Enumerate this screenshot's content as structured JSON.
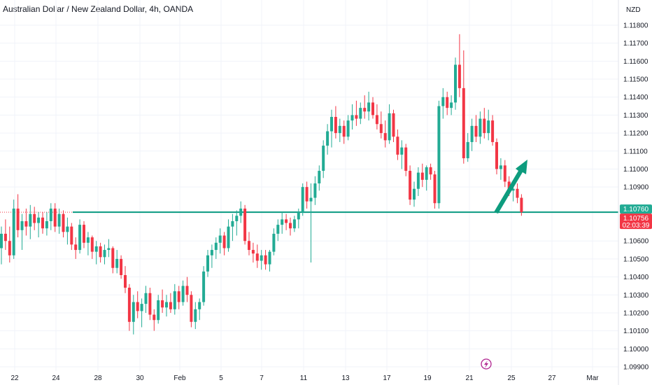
{
  "header": {
    "title": "Australian Dollar / New Zealand Dollar, 4h, OANDA",
    "currency": "NZD"
  },
  "colors": {
    "up": "#22ab94",
    "down": "#f23645",
    "level": "#089981",
    "arrow": "#0d9c7e",
    "last_price_badge": "#f23645",
    "level_badge": "#22ab94",
    "grid": "#f0f3fa",
    "text": "#131722",
    "bolt": "#b0238f"
  },
  "price_scale": {
    "ticks": [
      "1.11800",
      "1.11700",
      "1.11600",
      "1.11500",
      "1.11400",
      "1.11300",
      "1.11200",
      "1.11100",
      "1.11000",
      "1.10900",
      "1.10600",
      "1.10500",
      "1.10400",
      "1.10300",
      "1.10200",
      "1.10100",
      "1.10000",
      "1.09900"
    ],
    "level_badge": "1.10760",
    "last_price_badge": "1.10756",
    "countdown": "02:03:39"
  },
  "time_scale": {
    "labels": [
      "22",
      "24",
      "28",
      "30",
      "Feb",
      "5",
      "7",
      "11",
      "13",
      "17",
      "19",
      "21",
      "25",
      "27",
      "Mar"
    ]
  },
  "chart_data": {
    "type": "candlestick",
    "title": "Australian Dollar / New Zealand Dollar, 4h, OANDA",
    "y_unit": "NZD",
    "ylim": [
      1.0988,
      1.1188
    ],
    "x_range": [
      "Jan 22",
      "Mar 2"
    ],
    "horizontal_level": 1.1076,
    "last_price": 1.10756,
    "annotation": "upward arrow projecting price rise from the 1.10760 level",
    "ohlc": [
      [
        1.1056,
        1.1068,
        1.1047,
        1.1064
      ],
      [
        1.1064,
        1.1072,
        1.1055,
        1.106
      ],
      [
        1.106,
        1.1068,
        1.1048,
        1.1052
      ],
      [
        1.1052,
        1.1083,
        1.105,
        1.1078
      ],
      [
        1.1078,
        1.1086,
        1.1062,
        1.1066
      ],
      [
        1.1066,
        1.1075,
        1.1055,
        1.1071
      ],
      [
        1.1071,
        1.1078,
        1.1063,
        1.1068
      ],
      [
        1.1068,
        1.108,
        1.1061,
        1.1075
      ],
      [
        1.1075,
        1.1079,
        1.1066,
        1.107
      ],
      [
        1.107,
        1.1076,
        1.1062,
        1.1073
      ],
      [
        1.1073,
        1.1076,
        1.1064,
        1.1067
      ],
      [
        1.1067,
        1.1076,
        1.1063,
        1.1071
      ],
      [
        1.1071,
        1.1081,
        1.1066,
        1.1078
      ],
      [
        1.1078,
        1.1081,
        1.1065,
        1.1068
      ],
      [
        1.1068,
        1.1078,
        1.1064,
        1.1075
      ],
      [
        1.1075,
        1.1077,
        1.1062,
        1.1065
      ],
      [
        1.1065,
        1.1073,
        1.1058,
        1.1068
      ],
      [
        1.1068,
        1.107,
        1.1055,
        1.1058
      ],
      [
        1.1058,
        1.1062,
        1.105,
        1.1055
      ],
      [
        1.1055,
        1.1072,
        1.1053,
        1.1069
      ],
      [
        1.1069,
        1.1071,
        1.1056,
        1.1059
      ],
      [
        1.1059,
        1.1065,
        1.1052,
        1.1062
      ],
      [
        1.1062,
        1.1063,
        1.105,
        1.1054
      ],
      [
        1.1054,
        1.106,
        1.1047,
        1.1057
      ],
      [
        1.1057,
        1.1059,
        1.1048,
        1.1051
      ],
      [
        1.1051,
        1.1058,
        1.1047,
        1.1055
      ],
      [
        1.1055,
        1.1061,
        1.1051,
        1.1056
      ],
      [
        1.1056,
        1.1057,
        1.1042,
        1.1045
      ],
      [
        1.1045,
        1.1055,
        1.1042,
        1.105
      ],
      [
        1.105,
        1.1052,
        1.1039,
        1.1041
      ],
      [
        1.1041,
        1.1046,
        1.1031,
        1.1034
      ],
      [
        1.1034,
        1.1036,
        1.101,
        1.1015
      ],
      [
        1.1015,
        1.103,
        1.1008,
        1.1026
      ],
      [
        1.1026,
        1.1032,
        1.1017,
        1.1021
      ],
      [
        1.1021,
        1.1028,
        1.1012,
        1.1025
      ],
      [
        1.1025,
        1.1035,
        1.102,
        1.1031
      ],
      [
        1.1031,
        1.1034,
        1.1016,
        1.1019
      ],
      [
        1.1019,
        1.1022,
        1.101,
        1.1016
      ],
      [
        1.1016,
        1.103,
        1.1014,
        1.1027
      ],
      [
        1.1027,
        1.1033,
        1.102,
        1.1023
      ],
      [
        1.1023,
        1.103,
        1.1018,
        1.1026
      ],
      [
        1.1026,
        1.1031,
        1.102,
        1.1022
      ],
      [
        1.1022,
        1.1036,
        1.1019,
        1.1032
      ],
      [
        1.1032,
        1.1035,
        1.1022,
        1.1026
      ],
      [
        1.1026,
        1.1038,
        1.1024,
        1.1035
      ],
      [
        1.1035,
        1.104,
        1.1026,
        1.103
      ],
      [
        1.103,
        1.1032,
        1.1012,
        1.1015
      ],
      [
        1.1015,
        1.1026,
        1.1011,
        1.1022
      ],
      [
        1.1022,
        1.1028,
        1.1016,
        1.1026
      ],
      [
        1.1026,
        1.1046,
        1.1024,
        1.1043
      ],
      [
        1.1043,
        1.1055,
        1.104,
        1.1052
      ],
      [
        1.1052,
        1.1058,
        1.1045,
        1.1055
      ],
      [
        1.1055,
        1.1062,
        1.105,
        1.1059
      ],
      [
        1.1059,
        1.1067,
        1.1053,
        1.1063
      ],
      [
        1.1063,
        1.1065,
        1.1052,
        1.1056
      ],
      [
        1.1056,
        1.1072,
        1.1054,
        1.1068
      ],
      [
        1.1068,
        1.1075,
        1.106,
        1.1071
      ],
      [
        1.1071,
        1.1077,
        1.1063,
        1.1074
      ],
      [
        1.1074,
        1.1082,
        1.107,
        1.1078
      ],
      [
        1.1078,
        1.108,
        1.1058,
        1.106
      ],
      [
        1.106,
        1.1065,
        1.1052,
        1.1055
      ],
      [
        1.1055,
        1.1059,
        1.1048,
        1.1053
      ],
      [
        1.1053,
        1.1058,
        1.1045,
        1.1049
      ],
      [
        1.1049,
        1.1055,
        1.1044,
        1.1052
      ],
      [
        1.1052,
        1.1055,
        1.1044,
        1.1047
      ],
      [
        1.1047,
        1.1055,
        1.1043,
        1.1054
      ],
      [
        1.1054,
        1.1067,
        1.1052,
        1.1064
      ],
      [
        1.1064,
        1.1072,
        1.106,
        1.1069
      ],
      [
        1.1069,
        1.1076,
        1.1064,
        1.1072
      ],
      [
        1.1072,
        1.1075,
        1.1066,
        1.107
      ],
      [
        1.107,
        1.1073,
        1.1063,
        1.1067
      ],
      [
        1.1067,
        1.1074,
        1.1065,
        1.1072
      ],
      [
        1.1072,
        1.1078,
        1.1067,
        1.1076
      ],
      [
        1.1076,
        1.1092,
        1.1074,
        1.109
      ],
      [
        1.109,
        1.1093,
        1.1078,
        1.1082
      ],
      [
        1.1082,
        1.1092,
        1.1048,
        1.1084
      ],
      [
        1.1084,
        1.1096,
        1.108,
        1.1092
      ],
      [
        1.1092,
        1.1102,
        1.1088,
        1.1099
      ],
      [
        1.1099,
        1.1116,
        1.1095,
        1.1113
      ],
      [
        1.1113,
        1.1125,
        1.1108,
        1.1121
      ],
      [
        1.1121,
        1.1133,
        1.1112,
        1.1129
      ],
      [
        1.1129,
        1.1135,
        1.1117,
        1.112
      ],
      [
        1.112,
        1.1128,
        1.1115,
        1.1124
      ],
      [
        1.1124,
        1.1127,
        1.1114,
        1.1118
      ],
      [
        1.1118,
        1.113,
        1.1116,
        1.1127
      ],
      [
        1.1127,
        1.1136,
        1.1122,
        1.113
      ],
      [
        1.113,
        1.1138,
        1.1124,
        1.1128
      ],
      [
        1.1128,
        1.1137,
        1.1125,
        1.1134
      ],
      [
        1.1134,
        1.1141,
        1.1128,
        1.1132
      ],
      [
        1.1132,
        1.1143,
        1.1127,
        1.1137
      ],
      [
        1.1137,
        1.114,
        1.1128,
        1.113
      ],
      [
        1.113,
        1.1136,
        1.1122,
        1.1125
      ],
      [
        1.1125,
        1.1132,
        1.1117,
        1.112
      ],
      [
        1.112,
        1.1127,
        1.1112,
        1.1116
      ],
      [
        1.1116,
        1.1136,
        1.1114,
        1.1131
      ],
      [
        1.1131,
        1.1133,
        1.1115,
        1.1118
      ],
      [
        1.1118,
        1.1122,
        1.1105,
        1.1108
      ],
      [
        1.1108,
        1.1116,
        1.11,
        1.1112
      ],
      [
        1.1112,
        1.1114,
        1.1096,
        1.1099
      ],
      [
        1.1099,
        1.1102,
        1.108,
        1.1083
      ],
      [
        1.1083,
        1.1093,
        1.1079,
        1.1089
      ],
      [
        1.1089,
        1.1101,
        1.1085,
        1.1098
      ],
      [
        1.1098,
        1.1103,
        1.109,
        1.1094
      ],
      [
        1.1094,
        1.1102,
        1.1088,
        1.1101
      ],
      [
        1.1101,
        1.1103,
        1.1094,
        1.1097
      ],
      [
        1.1097,
        1.1099,
        1.1078,
        1.1081
      ],
      [
        1.1081,
        1.1138,
        1.1078,
        1.1135
      ],
      [
        1.1135,
        1.1145,
        1.1128,
        1.114
      ],
      [
        1.114,
        1.1143,
        1.113,
        1.1134
      ],
      [
        1.1134,
        1.1141,
        1.113,
        1.1137
      ],
      [
        1.1137,
        1.1162,
        1.1133,
        1.1158
      ],
      [
        1.1158,
        1.1175,
        1.114,
        1.1145
      ],
      [
        1.1145,
        1.1166,
        1.1103,
        1.1106
      ],
      [
        1.1106,
        1.112,
        1.1104,
        1.1115
      ],
      [
        1.1115,
        1.1128,
        1.111,
        1.1124
      ],
      [
        1.1124,
        1.113,
        1.1115,
        1.1118
      ],
      [
        1.1118,
        1.1132,
        1.1114,
        1.1128
      ],
      [
        1.1128,
        1.1134,
        1.1117,
        1.112
      ],
      [
        1.112,
        1.1133,
        1.1116,
        1.1127
      ],
      [
        1.1127,
        1.113,
        1.1113,
        1.1115
      ],
      [
        1.1115,
        1.1117,
        1.1097,
        1.11
      ],
      [
        1.11,
        1.1106,
        1.1094,
        1.1102
      ],
      [
        1.1102,
        1.1105,
        1.109,
        1.1093
      ],
      [
        1.1093,
        1.1096,
        1.1085,
        1.1088
      ],
      [
        1.1088,
        1.1092,
        1.1082,
        1.1089
      ],
      [
        1.1089,
        1.1092,
        1.1081,
        1.1084
      ],
      [
        1.1084,
        1.1086,
        1.1074,
        1.1076
      ]
    ]
  }
}
